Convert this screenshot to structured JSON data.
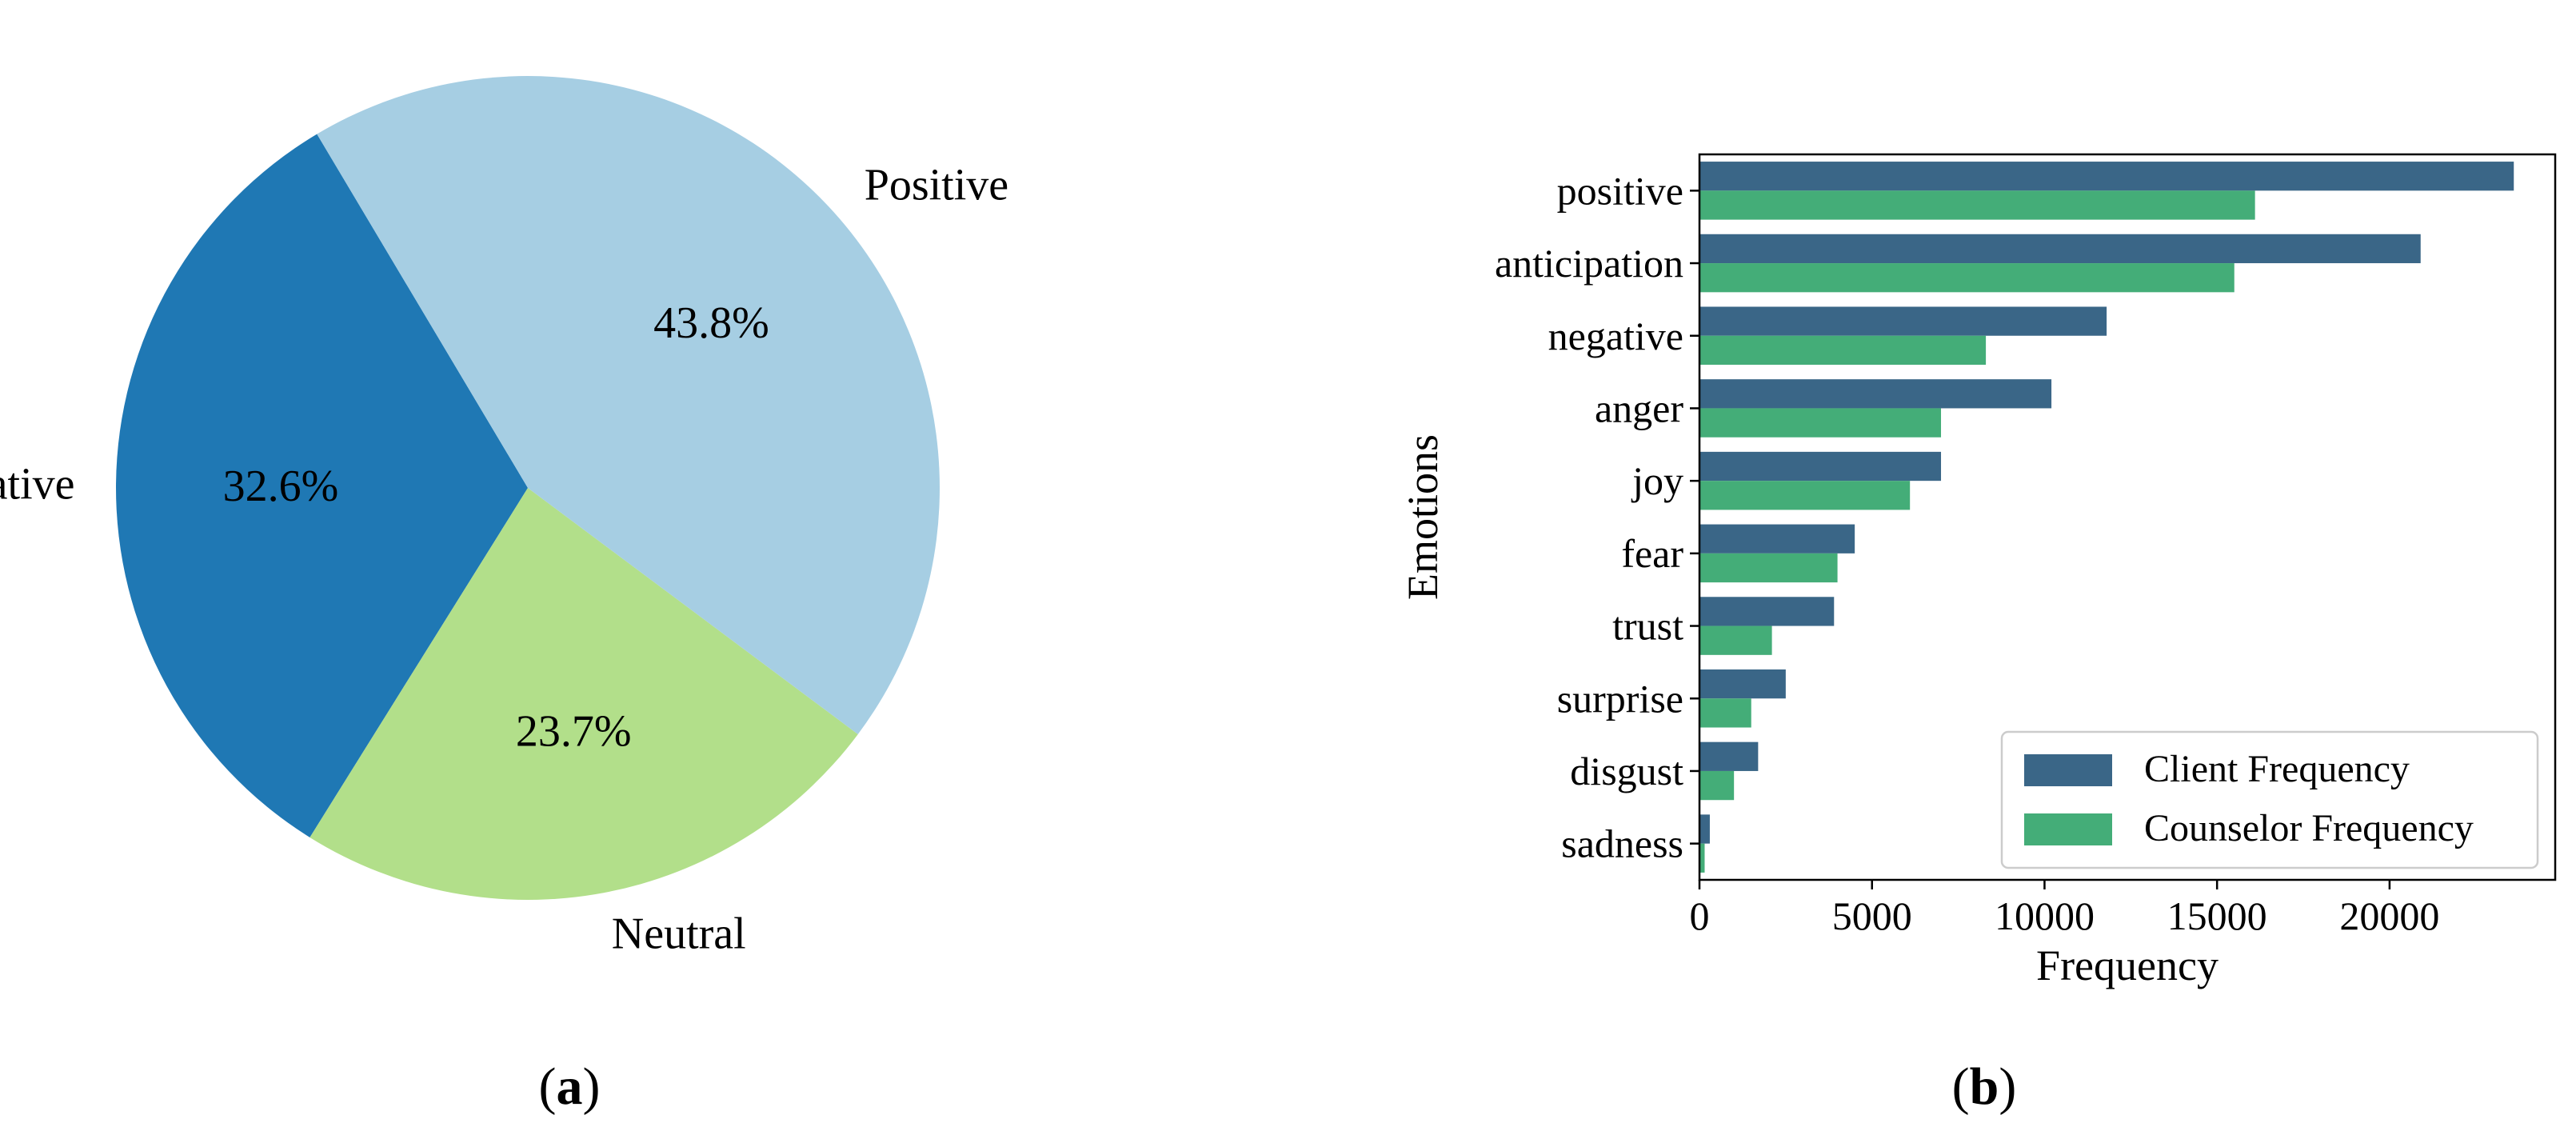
{
  "colors": {
    "pie": [
      "#1f78b4",
      "#b2df8a",
      "#a6cee3"
    ],
    "client": "#3a6687",
    "counselor": "#44ad78",
    "axis": "#000000",
    "legend_border": "#cccccc"
  },
  "chart_data": [
    {
      "type": "pie",
      "caption_letter": "a",
      "caption_open": "(",
      "caption_close": ")",
      "slices": [
        {
          "label": "Negative",
          "value": 32.6,
          "pct_label": "32.6%"
        },
        {
          "label": "Neutral",
          "value": 23.7,
          "pct_label": "23.7%"
        },
        {
          "label": "Positive",
          "value": 43.8,
          "pct_label": "43.8%"
        }
      ],
      "start_angle_deg": 120.8,
      "direction": "counterclockwise"
    },
    {
      "type": "bar",
      "orientation": "horizontal",
      "caption_letter": "b",
      "caption_open": "(",
      "caption_close": ")",
      "xlabel": "Frequency",
      "ylabel": "Emotions",
      "xlim": [
        0,
        24800
      ],
      "xticks": [
        0,
        5000,
        10000,
        15000,
        20000
      ],
      "xtick_labels": [
        "0",
        "5000",
        "10000",
        "15000",
        "20000"
      ],
      "categories": [
        "positive",
        "anticipation",
        "negative",
        "anger",
        "joy",
        "fear",
        "trust",
        "surprise",
        "disgust",
        "sadness"
      ],
      "series": [
        {
          "name": "Client Frequency",
          "values": [
            23600,
            20900,
            11800,
            10200,
            7000,
            4500,
            3900,
            2500,
            1700,
            300
          ]
        },
        {
          "name": "Counselor Frequency",
          "values": [
            16100,
            15500,
            8300,
            7000,
            6100,
            4000,
            2100,
            1500,
            1000,
            150
          ]
        }
      ],
      "legend_position": "lower-right"
    }
  ]
}
